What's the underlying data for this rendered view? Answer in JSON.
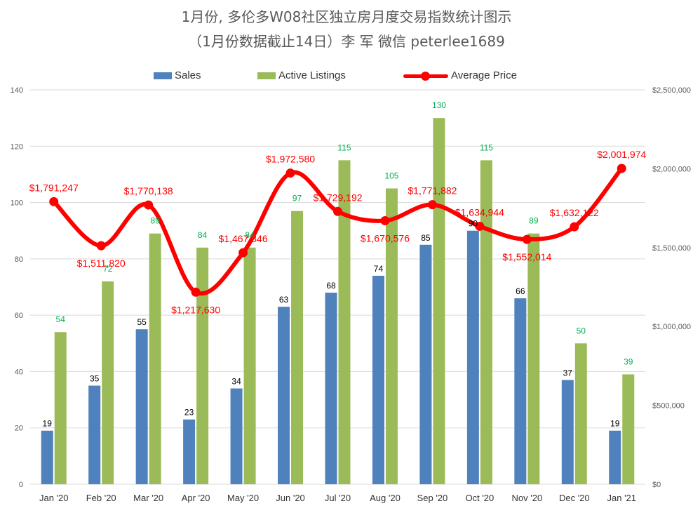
{
  "title_line1": "1月份, 多伦多W08社区独立房月度交易指数统计图示",
  "title_line2": "（1月份数据截止14日）李 军  微信   peterlee1689",
  "legend": {
    "sales": "Sales",
    "listings": "Active Listings",
    "price": "Average Price"
  },
  "colors": {
    "sales": "#4f81bd",
    "listings": "#9bbb59",
    "price": "#ff0000",
    "listings_label": "#00b050",
    "grid": "#d9d9d9",
    "axis_text": "#595959"
  },
  "chart_data": {
    "type": "bar",
    "categories": [
      "Jan '20",
      "Feb '20",
      "Mar '20",
      "Apr '20",
      "May '20",
      "Jun '20",
      "Jul '20",
      "Aug '20",
      "Sep '20",
      "Oct '20",
      "Nov '20",
      "Dec '20",
      "Jan '21"
    ],
    "series": [
      {
        "name": "Sales",
        "type": "bar",
        "axis": "left",
        "values": [
          19,
          35,
          55,
          23,
          34,
          63,
          68,
          74,
          85,
          90,
          66,
          37,
          19
        ]
      },
      {
        "name": "Active Listings",
        "type": "bar",
        "axis": "left",
        "values": [
          54,
          72,
          89,
          84,
          84,
          97,
          115,
          105,
          130,
          115,
          89,
          50,
          39
        ]
      },
      {
        "name": "Average Price",
        "type": "line",
        "axis": "right",
        "smooth": true,
        "values": [
          1791247,
          1511820,
          1770138,
          1217630,
          1467346,
          1972580,
          1729192,
          1670576,
          1771882,
          1634944,
          1552014,
          1632122,
          2001974
        ]
      }
    ],
    "price_labels": [
      "$1,791,247",
      "$1,511,820",
      "$1,770,138",
      "$1,217,630",
      "$1,467,346",
      "$1,972,580",
      "$1,729,192",
      "$1,670,576",
      "$1,771,882",
      "$1,634,944",
      "$1,552,014",
      "$1,632,122",
      "$2,001,974"
    ],
    "y_left": {
      "min": 0,
      "max": 140,
      "ticks": [
        0,
        20,
        40,
        60,
        80,
        100,
        120,
        140
      ]
    },
    "y_right": {
      "min": 0,
      "max": 2500000,
      "ticks": [
        0,
        500000,
        1000000,
        1500000,
        2000000,
        2500000
      ],
      "tick_labels": [
        "$0",
        "$500,000",
        "$1,000,000",
        "$1,500,000",
        "$2,000,000",
        "$2,500,000"
      ]
    },
    "grid": true,
    "legend_position": "top"
  }
}
